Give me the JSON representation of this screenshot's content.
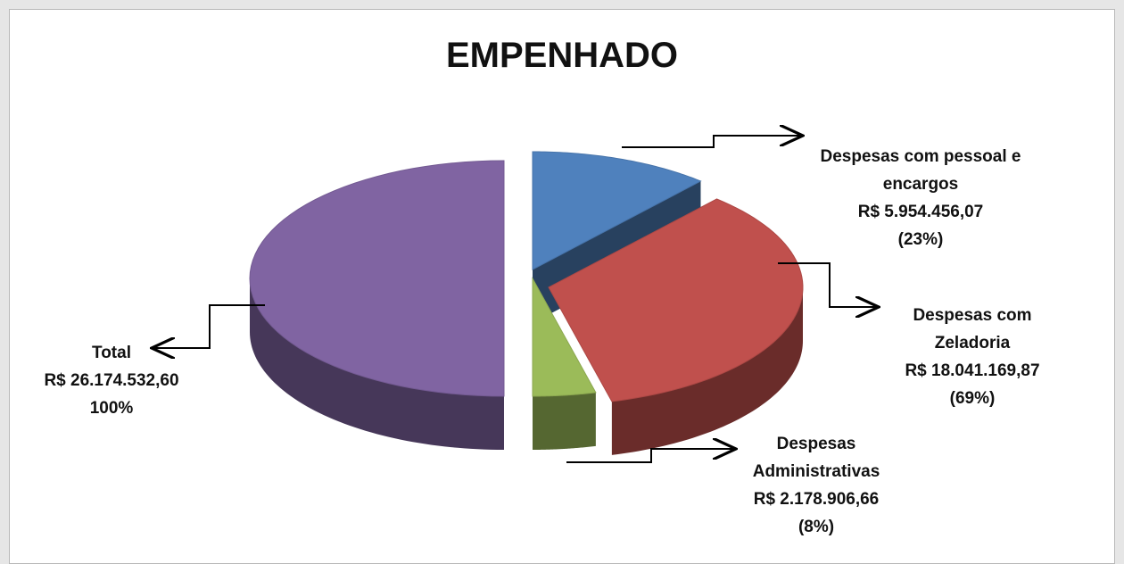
{
  "chart_data": {
    "type": "pie",
    "title": "EMPENHADO",
    "categories": [
      "Despesas com pessoal e encargos",
      "Despesas com Zeladoria",
      "Despesas Administrativas",
      "Total"
    ],
    "amounts": [
      5954456.07,
      18041169.87,
      2178906.66,
      26174532.6
    ],
    "amount_labels": [
      "R$ 5.954.456,07",
      "R$ 18.041.169,87",
      "R$ 2.178.906,66",
      "R$ 26.174.532,60"
    ],
    "values": [
      23,
      69,
      8,
      100
    ],
    "value_labels": [
      "(23%)",
      "(69%)",
      "(8%)",
      "100%"
    ],
    "colors": [
      "#4f81bd",
      "#c0504d",
      "#9bbb59",
      "#8064a2"
    ],
    "style": "3d"
  }
}
